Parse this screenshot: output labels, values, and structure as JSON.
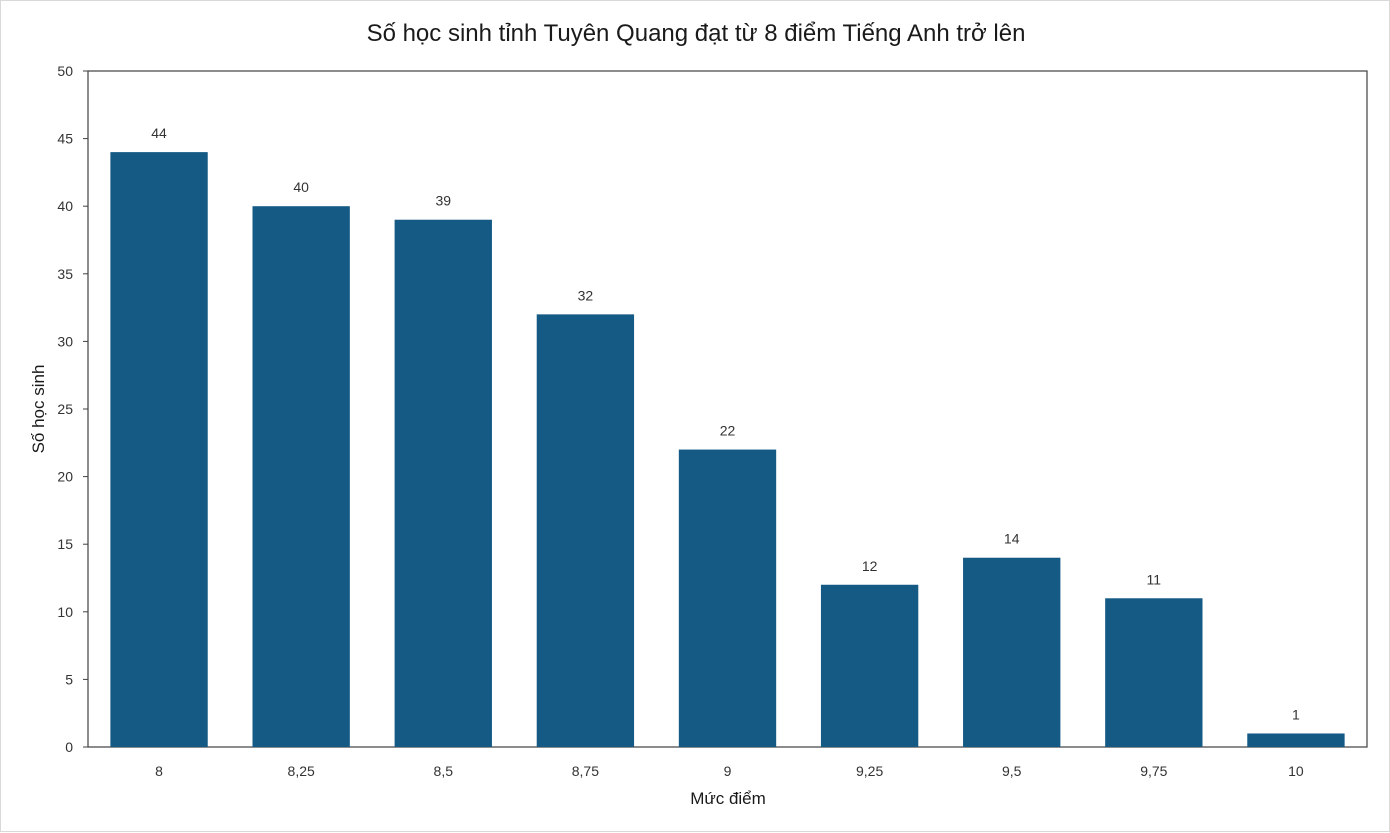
{
  "chart_data": {
    "type": "bar",
    "title": "Số học sinh tỉnh Tuyên Quang đạt từ 8 điểm Tiếng Anh trở lên",
    "xlabel": "Mức điểm",
    "ylabel": "Số học sinh",
    "categories": [
      "8",
      "8,25",
      "8,5",
      "8,75",
      "9",
      "9,25",
      "9,5",
      "9,75",
      "10"
    ],
    "values": [
      44,
      40,
      39,
      32,
      22,
      12,
      14,
      11,
      1
    ],
    "ylim": [
      0,
      50
    ],
    "yticks": [
      0,
      5,
      10,
      15,
      20,
      25,
      30,
      35,
      40,
      45,
      50
    ],
    "grid": false,
    "legend": "none",
    "bar_color": "#155a85",
    "data_labels": true
  }
}
